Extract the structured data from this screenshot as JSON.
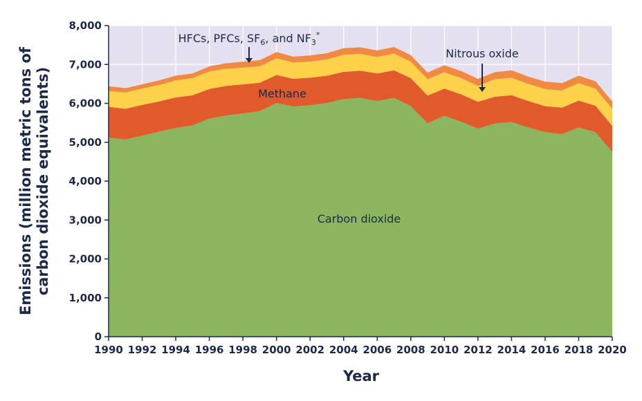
{
  "chart_data": {
    "type": "area",
    "stacked": true,
    "title": "",
    "xlabel": "Year",
    "ylabel_line1": "Emissions (million metric tons of",
    "ylabel_line2": "carbon dioxide equivalents)",
    "xlim": [
      1990,
      2020
    ],
    "ylim": [
      0,
      8000
    ],
    "x_ticks": [
      1990,
      1992,
      1994,
      1996,
      1998,
      2000,
      2002,
      2004,
      2006,
      2008,
      2010,
      2012,
      2014,
      2016,
      2018,
      2020
    ],
    "y_ticks": [
      0,
      1000,
      2000,
      3000,
      4000,
      5000,
      6000,
      7000,
      8000
    ],
    "y_tick_labels": [
      "0",
      "1,000",
      "2,000",
      "3,000",
      "4,000",
      "5,000",
      "6,000",
      "7,000",
      "8,000"
    ],
    "x": [
      1990,
      1991,
      1992,
      1993,
      1994,
      1995,
      1996,
      1997,
      1998,
      1999,
      2000,
      2001,
      2002,
      2003,
      2004,
      2005,
      2006,
      2007,
      2008,
      2009,
      2010,
      2011,
      2012,
      2013,
      2014,
      2015,
      2016,
      2017,
      2018,
      2019,
      2020
    ],
    "series": [
      {
        "name": "Carbon dioxide",
        "color": "#8cb560",
        "values": [
          5120,
          5070,
          5170,
          5270,
          5370,
          5430,
          5610,
          5690,
          5740,
          5800,
          6010,
          5920,
          5950,
          6010,
          6110,
          6140,
          6060,
          6140,
          5930,
          5490,
          5680,
          5530,
          5350,
          5480,
          5520,
          5380,
          5260,
          5210,
          5380,
          5260,
          4750
        ]
      },
      {
        "name": "Methane",
        "color": "#e05a2b",
        "values": [
          790,
          790,
          790,
          780,
          780,
          780,
          760,
          760,
          750,
          730,
          720,
          710,
          710,
          700,
          700,
          700,
          710,
          710,
          720,
          710,
          700,
          700,
          690,
          690,
          690,
          680,
          670,
          680,
          690,
          680,
          670
        ]
      },
      {
        "name": "Nitrous oxide",
        "color": "#fdd24a",
        "values": [
          410,
          420,
          420,
          420,
          440,
          440,
          450,
          440,
          430,
          420,
          430,
          420,
          410,
          420,
          440,
          430,
          420,
          430,
          420,
          420,
          420,
          420,
          410,
          450,
          450,
          440,
          440,
          440,
          450,
          440,
          440
        ]
      },
      {
        "name": "HFCs, PFCs, SF6, and NF3*",
        "color": "#f08a43",
        "values": [
          120,
          110,
          110,
          120,
          120,
          120,
          130,
          140,
          150,
          160,
          160,
          150,
          160,
          160,
          170,
          170,
          170,
          170,
          170,
          170,
          180,
          180,
          180,
          180,
          190,
          190,
          190,
          190,
          190,
          190,
          190
        ]
      }
    ],
    "annotations": {
      "hfc_prefix": "HFCs, PFCs, SF",
      "hfc_sub6": "6",
      "hfc_mid": ", and NF",
      "hfc_sub3": "3",
      "hfc_star": "*",
      "nitrous": "Nitrous oxide",
      "methane": "Methane",
      "co2": "Carbon dioxide"
    },
    "colors": {
      "plot_background": "#e4e0ef",
      "text": "#1b2a4a",
      "axis": "#1b2a4a",
      "grid": "#ffffff"
    }
  }
}
